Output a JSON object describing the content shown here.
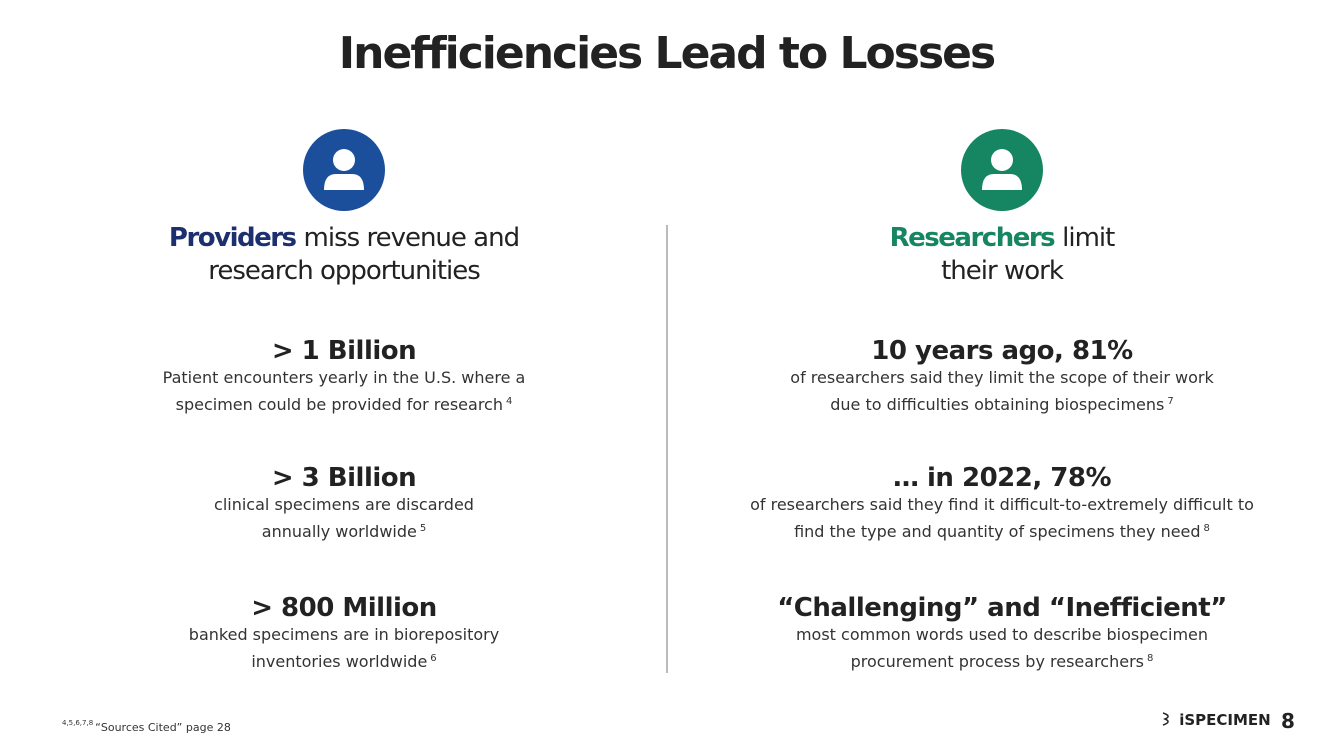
{
  "title": "Inefficiencies Lead to Losses",
  "columns": [
    {
      "heading": {
        "bold": "Providers",
        "lines": [
          "miss revenue and",
          "research opportunities"
        ]
      },
      "stats": [
        {
          "headline": "> 1 Billion",
          "lines": [
            "Patient encounters yearly in the U.S. where a",
            "specimen could be provided for research"
          ],
          "sup": "4"
        },
        {
          "headline": "> 3 Billion",
          "lines": [
            "clinical specimens are discarded",
            "annually worldwide"
          ],
          "sup": "5"
        },
        {
          "headline": "> 800 Million",
          "lines": [
            "banked specimens are in biorepository",
            "inventories worldwide"
          ],
          "sup": "6"
        }
      ]
    },
    {
      "heading": {
        "bold": "Researchers",
        "lines": [
          "limit",
          "their work"
        ]
      },
      "stats": [
        {
          "headline": "10 years ago, 81%",
          "lines": [
            "of researchers said they limit the scope of their work",
            "due to difficulties obtaining biospecimens"
          ],
          "sup": "7"
        },
        {
          "headline": "… in 2022, 78%",
          "lines": [
            "of researchers said they find it difficult-to-extremely difficult to",
            "find the type and quantity of specimens they need"
          ],
          "sup": "8"
        },
        {
          "headline": "“Challenging” and “Inefficient”",
          "lines": [
            "most common words used to describe biospecimen",
            "procurement process by researchers"
          ],
          "sup": "8"
        }
      ]
    }
  ],
  "footer": {
    "sup": "4,5,6,7,8",
    "text": "“Sources Cited” page 28",
    "logo": "iSPECIMEN",
    "page": "8"
  }
}
